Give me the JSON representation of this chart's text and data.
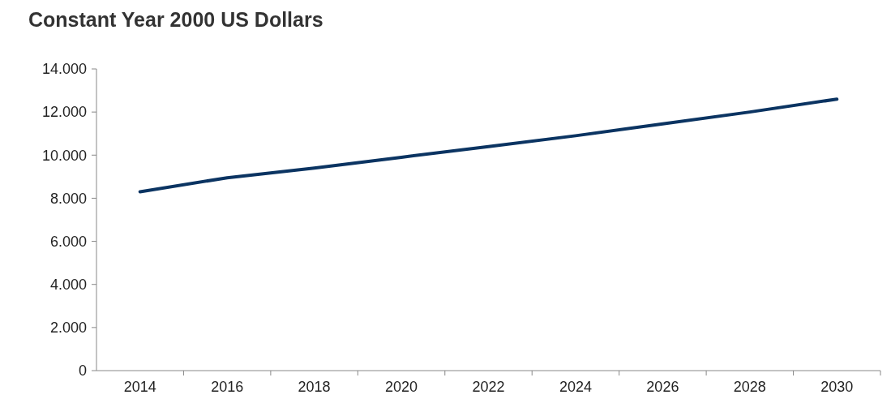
{
  "chart_data": {
    "type": "line",
    "title": "Constant Year 2000 US Dollars",
    "categories": [
      "2014",
      "2016",
      "2018",
      "2020",
      "2022",
      "2024",
      "2026",
      "2028",
      "2030"
    ],
    "series": [
      {
        "color": "#0b3462",
        "values": [
          8300,
          8950,
          9400,
          9900,
          10400,
          10900,
          11450,
          12000,
          12600
        ]
      }
    ],
    "ylim": [
      0,
      14000
    ],
    "yticks": [
      0,
      {
        "value": 2000,
        "label": "2.000"
      },
      {
        "value": 4000,
        "label": "4.000"
      },
      {
        "value": 6000,
        "label": "6.000"
      },
      {
        "value": 8000,
        "label": "8.000"
      },
      {
        "value": 10000,
        "label": "10.000"
      },
      {
        "value": 12000,
        "label": "12.000"
      },
      {
        "value": 14000,
        "label": "14.000"
      }
    ],
    "grid": false,
    "marker": "none",
    "line_style": "solid"
  }
}
